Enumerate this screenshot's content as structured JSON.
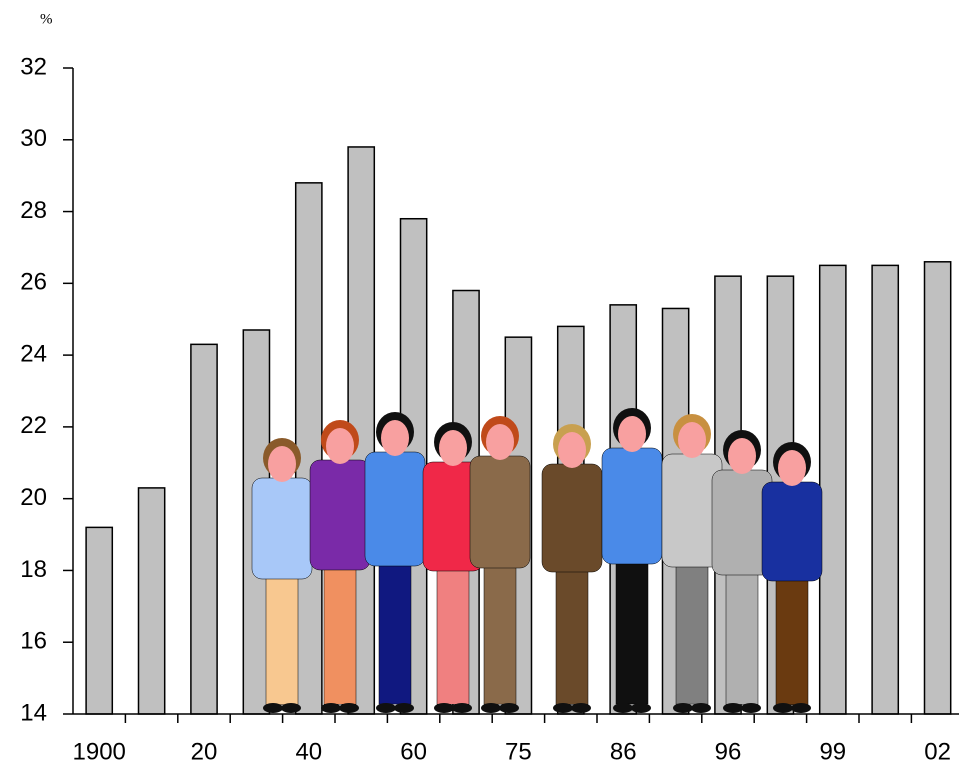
{
  "chart_data": {
    "type": "bar",
    "y_label": "%",
    "categories": [
      "1900",
      null,
      "20",
      null,
      "40",
      null,
      "60",
      null,
      "75",
      null,
      "86",
      null,
      "96",
      null,
      "99",
      null,
      "02"
    ],
    "values": [
      19.2,
      20.3,
      24.3,
      24.7,
      28.8,
      29.8,
      27.8,
      25.8,
      24.5,
      24.8,
      25.4,
      25.3,
      26.2,
      26.2,
      26.5,
      26.5,
      26.6
    ],
    "color": "#c0c0c0",
    "ylim": [
      14,
      32
    ],
    "yticks": [
      14,
      16,
      18,
      20,
      22,
      24,
      26,
      28,
      30,
      32
    ],
    "grid": false
  }
}
